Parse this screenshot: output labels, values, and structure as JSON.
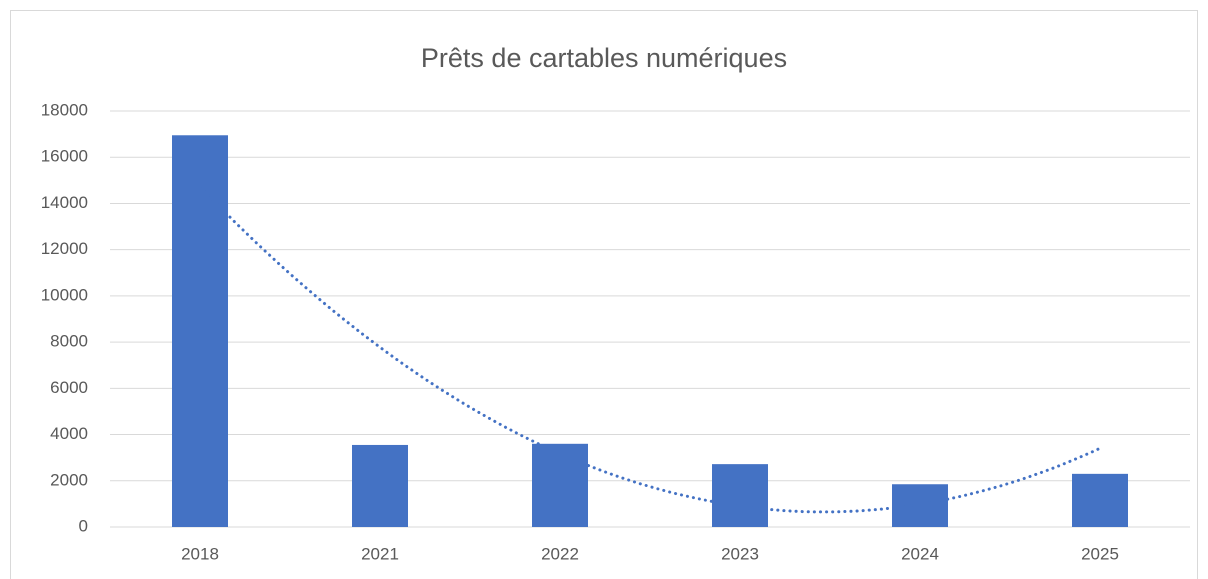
{
  "chart_data": {
    "type": "bar",
    "title": "Prêts de cartables numériques",
    "categories": [
      "2018",
      "2021",
      "2022",
      "2023",
      "2024",
      "2025"
    ],
    "values": [
      16950,
      3550,
      3600,
      2720,
      1850,
      2300
    ],
    "color": "#4472c4",
    "ylim": [
      0,
      18000
    ],
    "yticks": [
      0,
      2000,
      4000,
      6000,
      8000,
      10000,
      12000,
      14000,
      16000,
      18000
    ],
    "grid": true,
    "trendline": {
      "type": "polynomial",
      "order": 2,
      "color": "#4472c4",
      "style": "dotted"
    }
  }
}
